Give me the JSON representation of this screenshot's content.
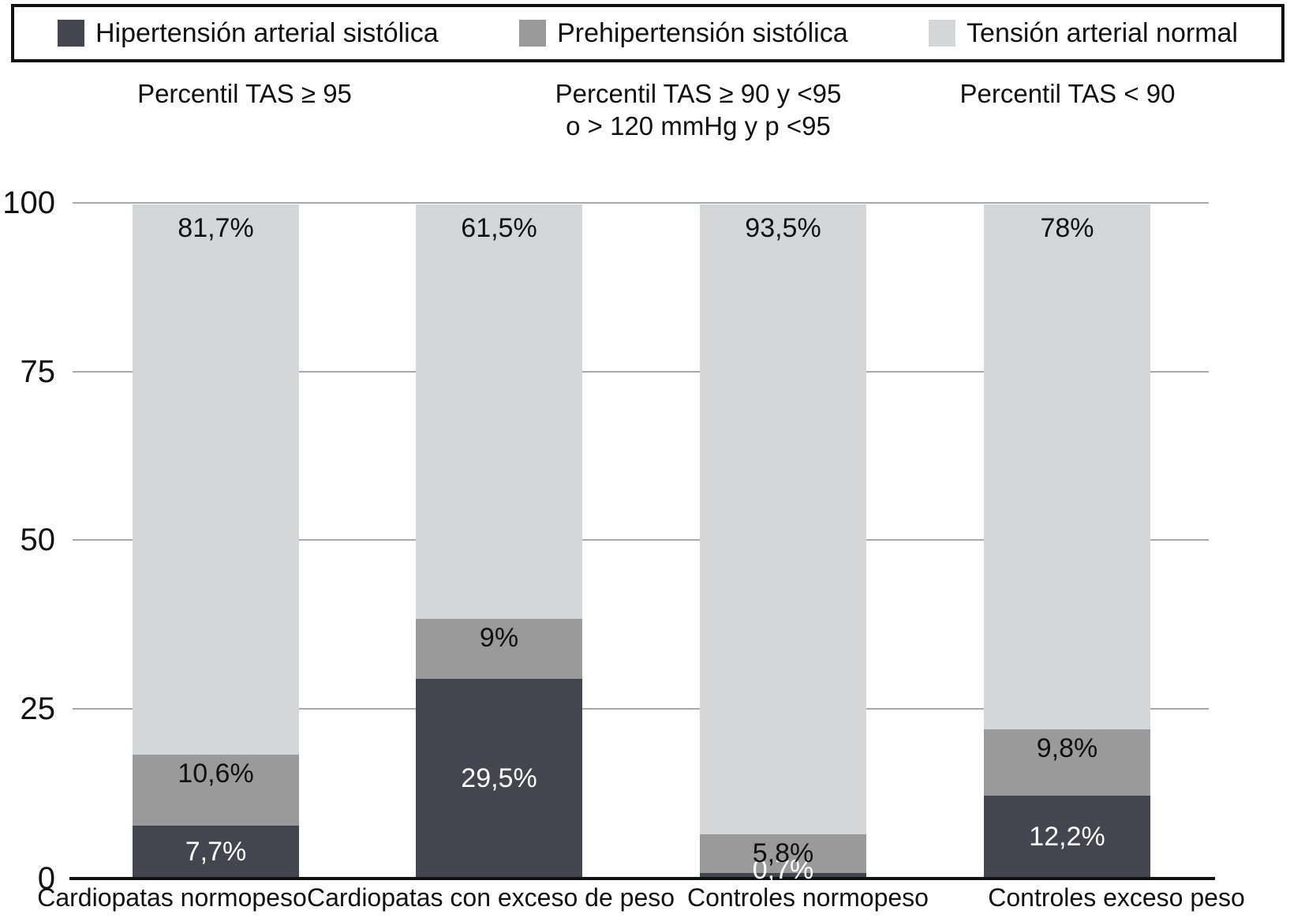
{
  "legend": {
    "items": [
      {
        "label": "Hipertensión arterial sistólica",
        "color": "#43464e"
      },
      {
        "label": "Prehipertensión sistólica",
        "color": "#9a9a9a"
      },
      {
        "label": "Tensión arterial normal",
        "color": "#d5d6d8"
      }
    ]
  },
  "column_headers": [
    {
      "lines": [
        "Percentil TAS ≥ 95"
      ]
    },
    {
      "lines": [
        "Percentil TAS ≥ 90 y <95",
        "o > 120 mmHg y p <95"
      ]
    },
    {
      "lines": [
        "Percentil TAS < 90"
      ]
    }
  ],
  "chart_data": {
    "type": "bar",
    "stacked": true,
    "stack_total": 100,
    "title": "",
    "xlabel": "",
    "ylabel": "",
    "ylim": [
      0,
      100
    ],
    "yticks": [
      0,
      25,
      50,
      75,
      100
    ],
    "grid": true,
    "legend_position": "top",
    "categories": [
      "Cardiopatas normopeso",
      "Cardiopatas con exceso de peso",
      "Controles normopeso",
      "Controles exceso peso"
    ],
    "series": [
      {
        "name": "Hipertensión arterial sistólica",
        "key": "hipertension-arterial-sistolica",
        "color": "#43464e",
        "label_color": "#ffffff",
        "values": [
          7.7,
          29.5,
          0.7,
          12.2
        ],
        "labels": [
          "7,7%",
          "29,5%",
          "0,7%",
          "12,2%"
        ]
      },
      {
        "name": "Prehipertensión sistólica",
        "key": "prehipertension-sistolica",
        "color": "#9a9a9a",
        "label_color": "#111111",
        "values": [
          10.6,
          9,
          5.8,
          9.8
        ],
        "labels": [
          "10,6%",
          "9%",
          "5,8%",
          "9,8%"
        ]
      },
      {
        "name": "Tensión arterial normal",
        "key": "tension-arterial-normal",
        "color": "#d5d6d8",
        "label_color": "#111111",
        "values": [
          81.7,
          61.5,
          93.5,
          78
        ],
        "labels": [
          "81,7%",
          "61,5%",
          "93,5%",
          "78%"
        ]
      }
    ]
  }
}
